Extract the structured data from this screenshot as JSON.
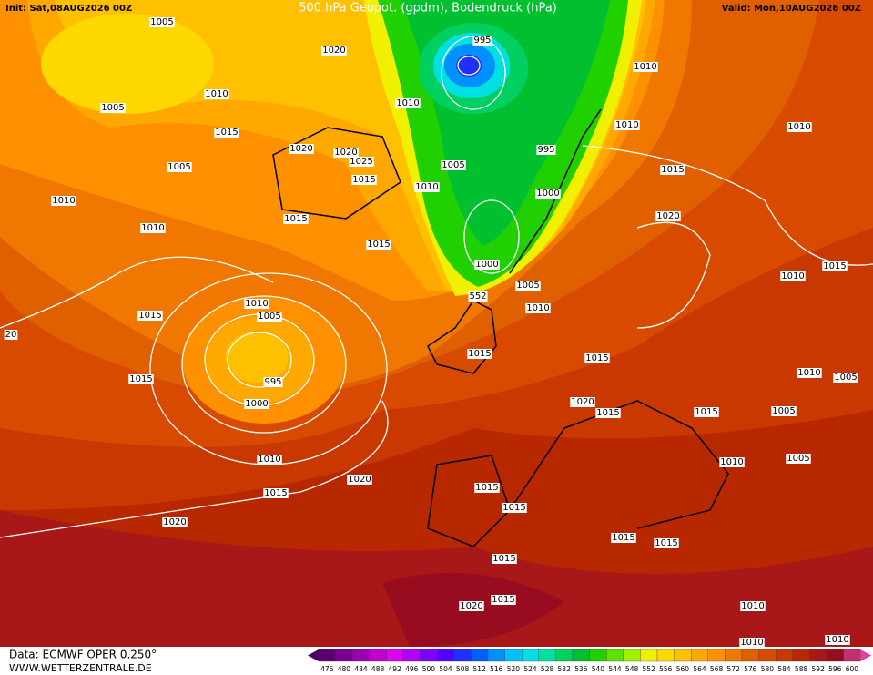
{
  "header": {
    "init": "Init: Sat,08AUG2026 00Z",
    "title": "500 hPa Geopot. (gpdm), Bodendruck (hPa)",
    "valid": "Valid: Mon,10AUG2026 00Z"
  },
  "footer": {
    "data": "Data: ECMWF OPER 0.250°",
    "website": "WWW.WETTERZENTRALE.DE"
  },
  "colorbar": {
    "levels": [
      476,
      480,
      484,
      488,
      492,
      496,
      500,
      504,
      508,
      512,
      516,
      520,
      524,
      528,
      532,
      536,
      540,
      544,
      548,
      552,
      556,
      560,
      564,
      568,
      572,
      576,
      580,
      584,
      588,
      592,
      596,
      600
    ],
    "colors": [
      "#5a0070",
      "#7a0090",
      "#9a00b0",
      "#c000d0",
      "#e000f0",
      "#b000ff",
      "#8000ff",
      "#5000ff",
      "#2030ff",
      "#0060ff",
      "#0090ff",
      "#00c0ff",
      "#00e0e0",
      "#00e0a0",
      "#00d060",
      "#00c030",
      "#20d000",
      "#60e000",
      "#a0f000",
      "#f0f000",
      "#ffd800",
      "#ffc000",
      "#ffa800",
      "#ff9000",
      "#f07800",
      "#e06000",
      "#d84a00",
      "#c83800",
      "#b82800",
      "#a81818",
      "#980c20",
      "#c0306a"
    ]
  },
  "isobar_labels": [
    1005,
    1020,
    1010,
    1005,
    1015,
    1020,
    1020,
    1025,
    1005,
    1015,
    1010,
    1010,
    1015,
    1015,
    1015,
    1010,
    1005,
    995,
    1000,
    1015,
    1010,
    1015,
    1020,
    1020,
    995,
    1010,
    1010,
    1010,
    1010,
    995,
    1005,
    1015,
    1010,
    1000,
    1020,
    1000,
    1005,
    552,
    1010,
    1010,
    1015,
    1015,
    1015,
    1010,
    1005,
    1020,
    1015,
    1015,
    1005,
    1010,
    1005,
    1015,
    1015,
    1015,
    1015,
    1015,
    1020,
    1015,
    1010,
    1010,
    1010,
    20
  ]
}
